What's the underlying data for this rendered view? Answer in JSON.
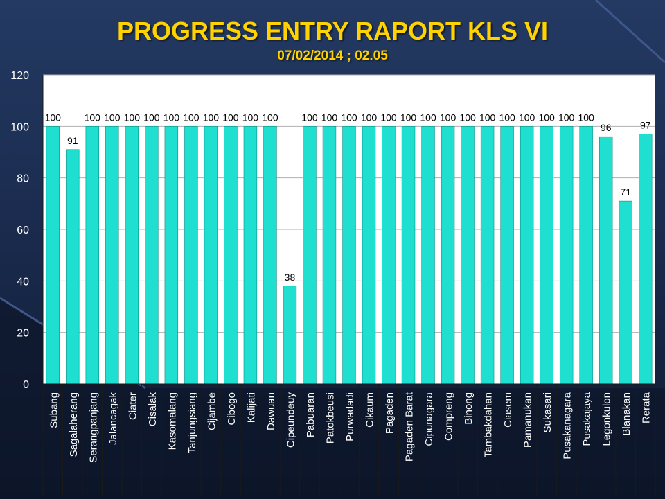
{
  "chart_data": {
    "type": "bar",
    "title": "PROGRESS ENTRY RAPORT KLS VI",
    "subtitle": "07/02/2014 ; 02.05",
    "xlabel": "",
    "ylabel": "",
    "ylim": [
      0,
      120
    ],
    "yticks": [
      0,
      20,
      40,
      60,
      80,
      100,
      120
    ],
    "grid": true,
    "categories": [
      "Subang",
      "Sagalaherang",
      "Serangpanjang",
      "Jalancagak",
      "Ciater",
      "Cisalak",
      "Kasomalang",
      "Tanjungsiang",
      "Cijambe",
      "Cibogo",
      "Kalijati",
      "Dawuan",
      "Cipeundeuy",
      "Pabuaran",
      "Patokbeusi",
      "Purwadadi",
      "Cikaum",
      "Pagaden",
      "Pagaden Barat",
      "Cipunagara",
      "Compreng",
      "Binong",
      "Tambakdahan",
      "Ciasem",
      "Pamanukan",
      "Sukasari",
      "Pusakanagara",
      "Pusakajaya",
      "Legonkulon",
      "Blanakan",
      "Rerata"
    ],
    "values": [
      100,
      91,
      100,
      100,
      100,
      100,
      100,
      100,
      100,
      100,
      100,
      100,
      38,
      100,
      100,
      100,
      100,
      100,
      100,
      100,
      100,
      100,
      100,
      100,
      100,
      100,
      100,
      100,
      96,
      71,
      97
    ],
    "bar_color": "#1fe0d0"
  }
}
